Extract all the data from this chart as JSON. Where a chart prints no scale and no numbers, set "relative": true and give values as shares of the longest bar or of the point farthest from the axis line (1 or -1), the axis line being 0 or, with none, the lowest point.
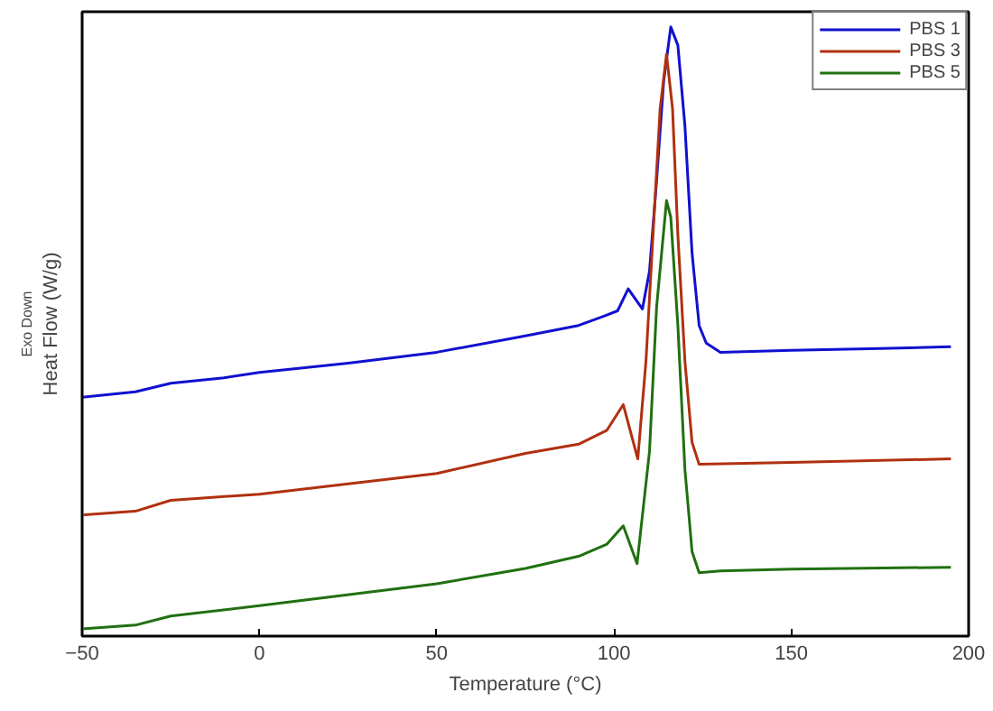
{
  "chart_data": {
    "type": "line",
    "relative": true,
    "xlabel": "Temperature (°C)",
    "ylabel": "Heat Flow (W/g) $_{Exo Down}$",
    "xlim": [
      -50,
      200
    ],
    "xticks": [
      -50,
      0,
      50,
      100,
      150,
      200
    ],
    "legend": "top right",
    "grid": false,
    "line_style": "solid",
    "marker": "none",
    "series": [
      {
        "name": "PBS 1",
        "color": "#1010d0",
        "x": [
          -50,
          -35,
          -25,
          -10,
          0,
          25,
          50,
          75,
          90,
          97,
          101,
          104,
          108,
          110,
          112,
          114,
          116,
          118,
          120,
          122,
          124,
          126,
          130,
          150,
          175,
          195
        ],
        "values": [
          0.392,
          0.401,
          0.415,
          0.424,
          0.433,
          0.448,
          0.466,
          0.493,
          0.51,
          0.525,
          0.534,
          0.57,
          0.537,
          0.599,
          0.748,
          0.911,
          1,
          0.97,
          0.837,
          0.629,
          0.51,
          0.481,
          0.466,
          0.469,
          0.472,
          0.475
        ]
      },
      {
        "name": "PBS 3",
        "color": "#b03010",
        "x": [
          -50,
          -35,
          -25,
          0,
          50,
          75,
          90,
          98,
          102.6,
          106.7,
          109,
          111,
          113,
          114.8,
          116.5,
          118,
          120,
          122,
          124,
          150,
          195
        ],
        "values": [
          0.199,
          0.205,
          0.223,
          0.233,
          0.267,
          0.3,
          0.315,
          0.338,
          0.38,
          0.291,
          0.451,
          0.659,
          0.866,
          0.955,
          0.866,
          0.659,
          0.451,
          0.318,
          0.282,
          0.285,
          0.291
        ]
      },
      {
        "name": "PBS 5",
        "color": "#207010",
        "x": [
          -50,
          -35,
          -25,
          0,
          50,
          75,
          90,
          98,
          102.6,
          106.5,
          110,
          112,
          114.8,
          116,
          118,
          120,
          122,
          124,
          130,
          150,
          195
        ],
        "values": [
          0.012,
          0.018,
          0.033,
          0.05,
          0.086,
          0.111,
          0.131,
          0.151,
          0.181,
          0.119,
          0.303,
          0.54,
          0.715,
          0.688,
          0.51,
          0.273,
          0.139,
          0.104,
          0.107,
          0.11,
          0.113
        ]
      }
    ]
  }
}
